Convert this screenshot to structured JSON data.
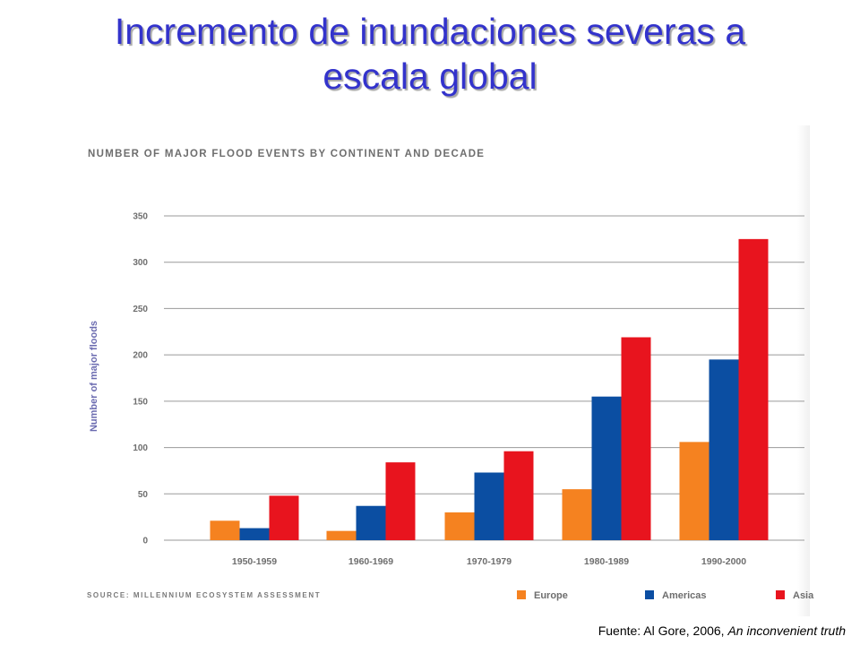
{
  "slide": {
    "title_line1": "Incremento de inundaciones severas a",
    "title_line2": "escala global",
    "credit_prefix": "Fuente: Al Gore, 2006, ",
    "credit_italic": "An inconvenient truth"
  },
  "chart_data": {
    "type": "bar",
    "title": "NUMBER OF MAJOR FLOOD EVENTS BY CONTINENT AND DECADE",
    "ylabel": "Number of major floods",
    "xlabel": "",
    "source": "SOURCE: MILLENNIUM ECOSYSTEM ASSESSMENT",
    "ylim": [
      0,
      350
    ],
    "yticks": [
      0,
      50,
      100,
      150,
      200,
      250,
      300,
      350
    ],
    "grid": true,
    "legend_position": "bottom-right",
    "categories": [
      "1950-1959",
      "1960-1969",
      "1970-1979",
      "1980-1989",
      "1990-2000"
    ],
    "series": [
      {
        "name": "Europe",
        "color": "#f58220",
        "values": [
          21,
          10,
          30,
          55,
          106
        ]
      },
      {
        "name": "Americas",
        "color": "#0b4ea2",
        "values": [
          13,
          37,
          73,
          155,
          195
        ]
      },
      {
        "name": "Asia",
        "color": "#e8141e",
        "values": [
          48,
          84,
          96,
          219,
          325
        ]
      }
    ]
  }
}
